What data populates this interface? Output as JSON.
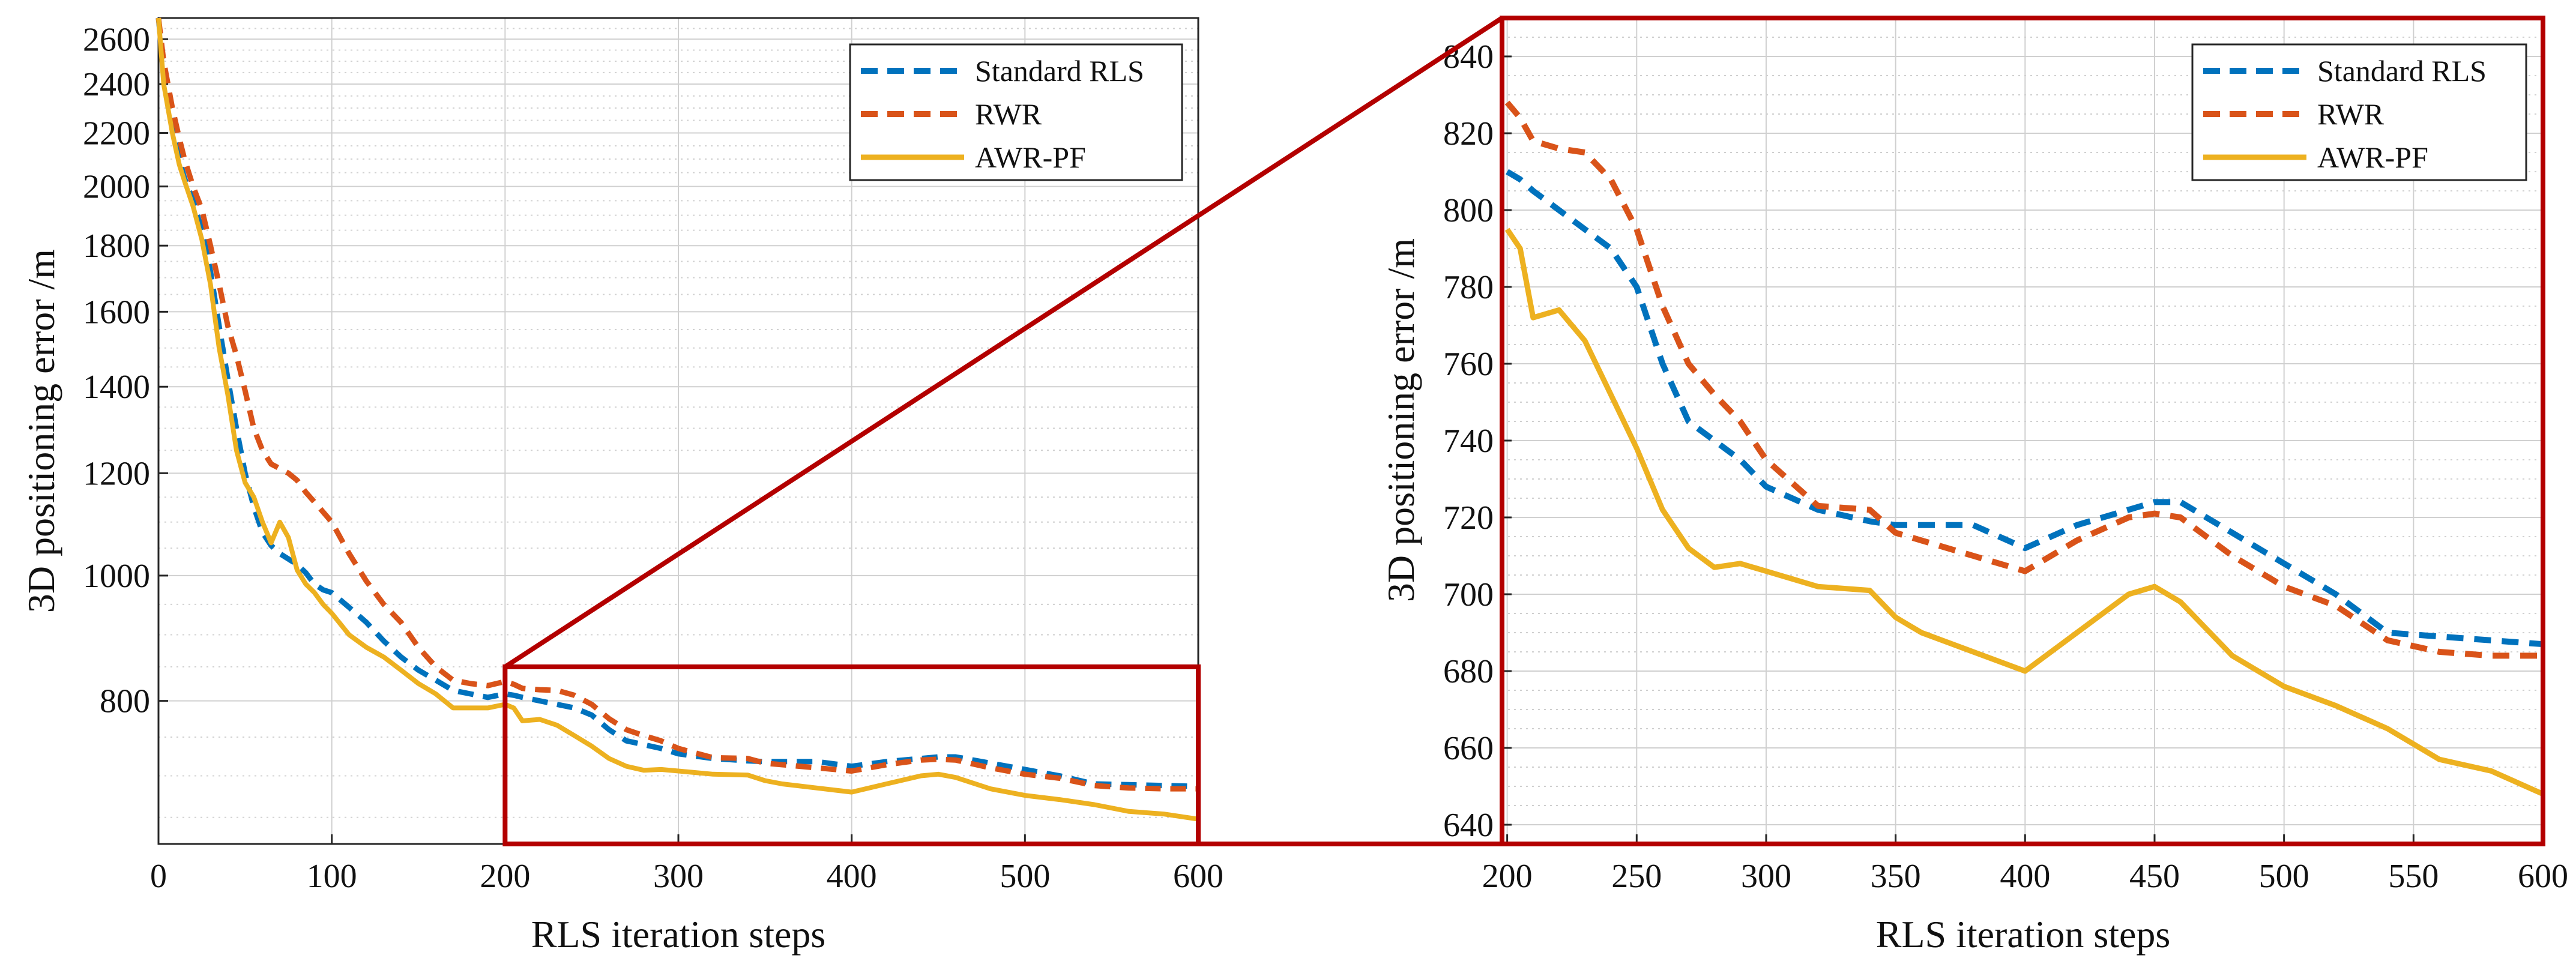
{
  "chart_data": [
    {
      "type": "line",
      "panel": "full",
      "title": "",
      "xlabel": "RLS iteration steps",
      "ylabel": "3D positioning error /m",
      "xlim": [
        0,
        600
      ],
      "ylim": [
        620,
        2700
      ],
      "yscale": "log",
      "xticks": [
        0,
        100,
        200,
        300,
        400,
        500,
        600
      ],
      "yticks": [
        800,
        1000,
        1200,
        1400,
        1600,
        1800,
        2000,
        2200,
        2400,
        2600
      ],
      "grid": true,
      "legend_position": "top-right",
      "series": [
        {
          "name": "Standard RLS",
          "color": "#0072BD",
          "style": "dashed",
          "x": [
            0,
            3,
            8,
            12,
            15,
            20,
            25,
            30,
            35,
            40,
            45,
            50,
            55,
            60,
            65,
            70,
            75,
            80,
            85,
            90,
            95,
            100,
            110,
            120,
            130,
            140,
            150,
            160,
            170,
            180,
            190,
            200,
            205,
            210,
            220,
            230,
            240,
            250,
            260,
            270,
            280,
            290,
            300,
            320,
            340,
            350,
            360,
            380,
            400,
            420,
            440,
            450,
            460,
            480,
            500,
            520,
            540,
            560,
            580,
            600
          ],
          "y": [
            2700,
            2450,
            2250,
            2100,
            2030,
            1950,
            1850,
            1720,
            1560,
            1420,
            1300,
            1200,
            1130,
            1080,
            1055,
            1040,
            1030,
            1020,
            1005,
            985,
            975,
            970,
            945,
            920,
            890,
            865,
            845,
            830,
            815,
            810,
            805,
            810,
            808,
            805,
            800,
            795,
            790,
            780,
            760,
            745,
            740,
            735,
            728,
            722,
            719,
            718,
            718,
            718,
            712,
            718,
            722,
            724,
            724,
            716,
            708,
            700,
            690,
            689,
            688,
            687
          ]
        },
        {
          "name": "RWR",
          "color": "#D95319",
          "style": "dashed",
          "x": [
            0,
            3,
            8,
            12,
            15,
            20,
            25,
            30,
            35,
            40,
            45,
            50,
            55,
            60,
            65,
            70,
            75,
            80,
            85,
            90,
            95,
            100,
            110,
            120,
            130,
            140,
            150,
            160,
            170,
            180,
            190,
            200,
            205,
            210,
            220,
            230,
            240,
            250,
            260,
            270,
            280,
            290,
            300,
            320,
            340,
            350,
            360,
            380,
            400,
            420,
            440,
            450,
            460,
            480,
            500,
            520,
            540,
            560,
            580,
            600
          ],
          "y": [
            2700,
            2500,
            2300,
            2180,
            2100,
            2000,
            1920,
            1800,
            1680,
            1560,
            1480,
            1390,
            1300,
            1250,
            1220,
            1210,
            1200,
            1185,
            1160,
            1140,
            1120,
            1100,
            1040,
            990,
            950,
            920,
            880,
            850,
            830,
            825,
            822,
            828,
            824,
            818,
            816,
            815,
            808,
            795,
            775,
            760,
            752,
            745,
            735,
            723,
            722,
            716,
            714,
            710,
            706,
            714,
            720,
            721,
            720,
            710,
            702,
            697,
            688,
            685,
            684,
            684
          ]
        },
        {
          "name": "AWR-PF",
          "color": "#EDB120",
          "style": "solid",
          "x": [
            0,
            3,
            8,
            12,
            15,
            20,
            25,
            30,
            35,
            40,
            45,
            50,
            55,
            60,
            65,
            70,
            75,
            80,
            85,
            90,
            95,
            100,
            110,
            120,
            130,
            140,
            150,
            160,
            170,
            180,
            190,
            200,
            205,
            210,
            220,
            230,
            240,
            250,
            260,
            270,
            280,
            290,
            300,
            320,
            340,
            350,
            360,
            380,
            400,
            420,
            440,
            450,
            460,
            480,
            500,
            520,
            540,
            560,
            580,
            600
          ],
          "y": [
            2700,
            2400,
            2200,
            2080,
            2020,
            1930,
            1820,
            1680,
            1500,
            1380,
            1250,
            1180,
            1150,
            1100,
            1060,
            1100,
            1070,
            1010,
            985,
            970,
            950,
            935,
            900,
            880,
            865,
            845,
            825,
            810,
            790,
            790,
            790,
            795,
            790,
            772,
            774,
            766,
            752,
            738,
            722,
            712,
            707,
            708,
            706,
            702,
            701,
            694,
            690,
            685,
            680,
            690,
            700,
            702,
            698,
            684,
            676,
            671,
            665,
            657,
            654,
            648
          ]
        }
      ]
    },
    {
      "type": "line",
      "panel": "zoom",
      "title": "",
      "xlabel": "RLS iteration steps",
      "ylabel": "3D positioning error /m",
      "xlim": [
        198,
        600
      ],
      "ylim": [
        635,
        850
      ],
      "xticks": [
        200,
        250,
        300,
        350,
        400,
        450,
        500,
        550,
        600
      ],
      "yticks": [
        640,
        660,
        680,
        700,
        720,
        740,
        760,
        780,
        800,
        820,
        840
      ],
      "grid": true,
      "legend_position": "top-right"
    }
  ],
  "zoom_region": {
    "x_range": [
      200,
      600
    ],
    "y_range": [
      620,
      850
    ]
  },
  "legend": {
    "entries": [
      "Standard RLS",
      "RWR",
      "AWR-PF"
    ]
  },
  "colors": {
    "frame": "#B30000",
    "axes": "#262626",
    "grid": "#d0d0d0"
  }
}
